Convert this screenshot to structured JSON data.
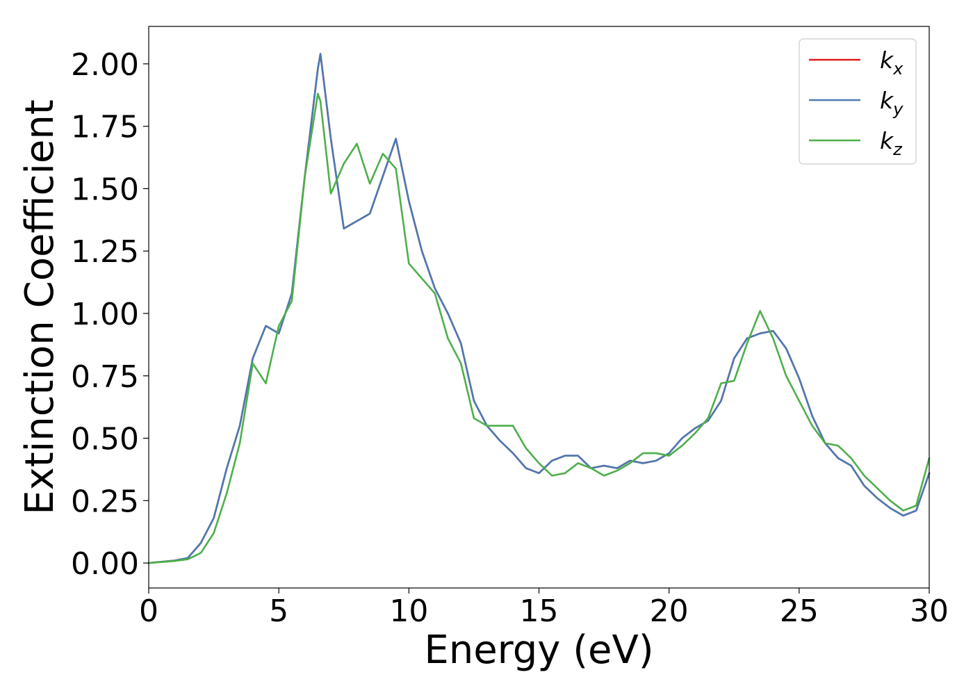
{
  "chart_data": {
    "type": "line",
    "title": "",
    "xlabel": "Energy (eV)",
    "ylabel": "Extinction Coefficient",
    "xlim": [
      0,
      30
    ],
    "ylim": [
      -0.1,
      2.15
    ],
    "xticks": [
      0,
      5,
      10,
      15,
      20,
      25,
      30
    ],
    "xtick_labels": [
      "0",
      "5",
      "10",
      "15",
      "20",
      "25",
      "30"
    ],
    "yticks": [
      0.0,
      0.25,
      0.5,
      0.75,
      1.0,
      1.25,
      1.5,
      1.75,
      2.0
    ],
    "ytick_labels": [
      "0.00",
      "0.25",
      "0.50",
      "0.75",
      "1.00",
      "1.25",
      "1.50",
      "1.75",
      "2.00"
    ],
    "grid": false,
    "legend": {
      "placement": "top-right",
      "entries": [
        {
          "base": "k",
          "sub": "x",
          "color": "#e41a1c"
        },
        {
          "base": "k",
          "sub": "y",
          "color": "#4a7ab3"
        },
        {
          "base": "k",
          "sub": "z",
          "color": "#4daf4a"
        }
      ]
    },
    "x": [
      0.0,
      0.5,
      1.0,
      1.5,
      2.0,
      2.5,
      3.0,
      3.5,
      4.0,
      4.5,
      5.0,
      5.5,
      6.0,
      6.5,
      6.6,
      7.0,
      7.5,
      8.0,
      8.5,
      9.0,
      9.5,
      10.0,
      10.5,
      11.0,
      11.5,
      12.0,
      12.5,
      13.0,
      13.5,
      14.0,
      14.5,
      15.0,
      15.5,
      16.0,
      16.5,
      17.0,
      17.5,
      18.0,
      18.5,
      19.0,
      19.5,
      20.0,
      20.5,
      21.0,
      21.5,
      22.0,
      22.5,
      23.0,
      23.5,
      24.0,
      24.5,
      25.0,
      25.5,
      26.0,
      26.5,
      27.0,
      27.5,
      28.0,
      28.5,
      29.0,
      29.5,
      30.0
    ],
    "series": [
      {
        "name": "k_x",
        "color": "#e41a1c",
        "values": [
          0.0,
          0.005,
          0.01,
          0.02,
          0.08,
          0.18,
          0.38,
          0.55,
          0.82,
          0.95,
          0.92,
          1.08,
          1.55,
          1.98,
          2.04,
          1.7,
          1.34,
          1.37,
          1.4,
          1.55,
          1.7,
          1.45,
          1.25,
          1.1,
          1.0,
          0.88,
          0.65,
          0.55,
          0.49,
          0.44,
          0.38,
          0.36,
          0.41,
          0.43,
          0.43,
          0.38,
          0.39,
          0.38,
          0.41,
          0.4,
          0.41,
          0.44,
          0.5,
          0.54,
          0.57,
          0.65,
          0.82,
          0.9,
          0.92,
          0.93,
          0.86,
          0.74,
          0.59,
          0.48,
          0.42,
          0.39,
          0.31,
          0.26,
          0.22,
          0.19,
          0.21,
          0.36
        ]
      },
      {
        "name": "k_y",
        "color": "#4a7ab3",
        "values": [
          0.0,
          0.005,
          0.01,
          0.02,
          0.08,
          0.18,
          0.38,
          0.55,
          0.82,
          0.95,
          0.92,
          1.08,
          1.55,
          1.98,
          2.04,
          1.7,
          1.34,
          1.37,
          1.4,
          1.55,
          1.7,
          1.45,
          1.25,
          1.1,
          1.0,
          0.88,
          0.65,
          0.55,
          0.49,
          0.44,
          0.38,
          0.36,
          0.41,
          0.43,
          0.43,
          0.38,
          0.39,
          0.38,
          0.41,
          0.4,
          0.41,
          0.44,
          0.5,
          0.54,
          0.57,
          0.65,
          0.82,
          0.9,
          0.92,
          0.93,
          0.86,
          0.74,
          0.59,
          0.48,
          0.42,
          0.39,
          0.31,
          0.26,
          0.22,
          0.19,
          0.21,
          0.36
        ]
      },
      {
        "name": "k_z",
        "color": "#4daf4a",
        "values": [
          0.0,
          0.004,
          0.008,
          0.015,
          0.04,
          0.12,
          0.28,
          0.48,
          0.8,
          0.72,
          0.95,
          1.05,
          1.55,
          1.88,
          1.85,
          1.48,
          1.6,
          1.68,
          1.52,
          1.64,
          1.58,
          1.2,
          1.14,
          1.08,
          0.9,
          0.8,
          0.58,
          0.55,
          0.55,
          0.55,
          0.46,
          0.4,
          0.35,
          0.36,
          0.4,
          0.38,
          0.35,
          0.37,
          0.4,
          0.44,
          0.44,
          0.43,
          0.47,
          0.52,
          0.58,
          0.72,
          0.73,
          0.88,
          1.01,
          0.9,
          0.75,
          0.65,
          0.55,
          0.48,
          0.47,
          0.42,
          0.35,
          0.3,
          0.25,
          0.21,
          0.23,
          0.42
        ]
      }
    ]
  }
}
